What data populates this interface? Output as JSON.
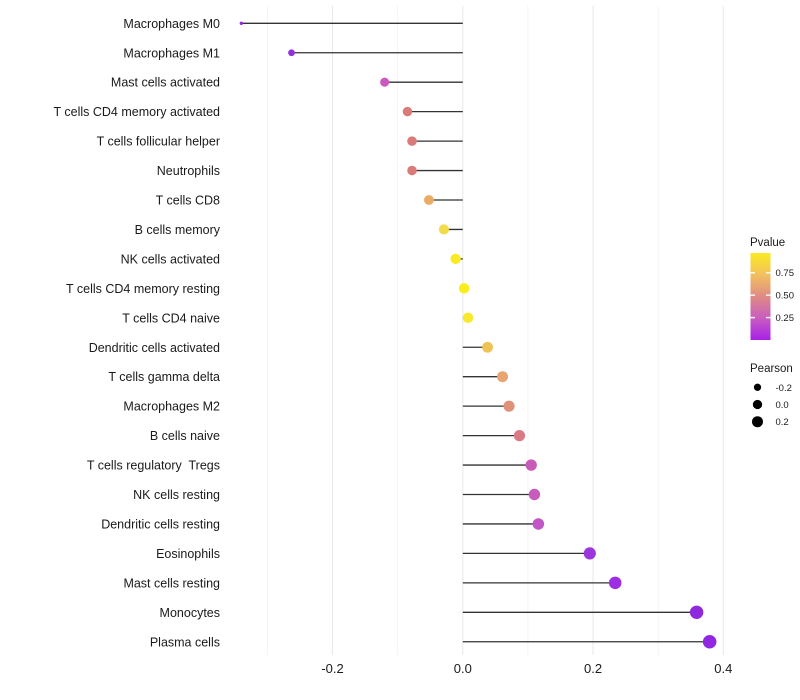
{
  "chart_data": {
    "type": "lollipop",
    "title": "",
    "xlabel": "",
    "ylabel": "",
    "orientation": "horizontal",
    "xlim": [
      -0.38,
      0.42
    ],
    "x_ticks": [
      -0.2,
      0.0,
      0.2,
      0.4
    ],
    "x_tick_labels": [
      "-0.2",
      "0.0",
      "0.2",
      "0.4"
    ],
    "minor_gridlines": [
      -0.3,
      -0.1,
      0.1,
      0.3
    ],
    "baseline_x": 0.0,
    "grid": "vertical-only",
    "points": [
      {
        "label": "Macrophages M0",
        "pearson": -0.34,
        "pvalue": 0.02,
        "color": "#8E2BD8"
      },
      {
        "label": "Macrophages M1",
        "pearson": -0.263,
        "pvalue": 0.05,
        "color": "#9330DD"
      },
      {
        "label": "Mast cells activated",
        "pearson": -0.12,
        "pvalue": 0.27,
        "color": "#C959BE"
      },
      {
        "label": "T cells CD4 memory activated",
        "pearson": -0.085,
        "pvalue": 0.47,
        "color": "#DB7B79"
      },
      {
        "label": "T cells follicular helper",
        "pearson": -0.078,
        "pvalue": 0.47,
        "color": "#DB7B79"
      },
      {
        "label": "Neutrophils",
        "pearson": -0.078,
        "pvalue": 0.47,
        "color": "#DB7B79"
      },
      {
        "label": "T cells CD8",
        "pearson": -0.052,
        "pvalue": 0.67,
        "color": "#EBAB63"
      },
      {
        "label": "B cells memory",
        "pearson": -0.029,
        "pvalue": 0.87,
        "color": "#F2DC48"
      },
      {
        "label": "NK cells activated",
        "pearson": -0.011,
        "pvalue": 0.95,
        "color": "#F9EB20"
      },
      {
        "label": "T cells CD4 memory resting",
        "pearson": 0.002,
        "pvalue": 0.96,
        "color": "#FAED1C"
      },
      {
        "label": "T cells CD4 naive",
        "pearson": 0.008,
        "pvalue": 0.93,
        "color": "#F7EA2E"
      },
      {
        "label": "Dendritic cells activated",
        "pearson": 0.038,
        "pvalue": 0.74,
        "color": "#EDC355"
      },
      {
        "label": "T cells gamma delta",
        "pearson": 0.061,
        "pvalue": 0.62,
        "color": "#E9A473"
      },
      {
        "label": "Macrophages M2",
        "pearson": 0.071,
        "pvalue": 0.53,
        "color": "#DE9279"
      },
      {
        "label": "B cells naive",
        "pearson": 0.087,
        "pvalue": 0.48,
        "color": "#DB7A85"
      },
      {
        "label": "T cells regulatory  Tregs",
        "pearson": 0.105,
        "pvalue": 0.28,
        "color": "#C85BB9"
      },
      {
        "label": "NK cells resting",
        "pearson": 0.11,
        "pvalue": 0.28,
        "color": "#C75BBE"
      },
      {
        "label": "Dendritic cells resting",
        "pearson": 0.116,
        "pvalue": 0.24,
        "color": "#C156C6"
      },
      {
        "label": "Eosinophils",
        "pearson": 0.195,
        "pvalue": 0.1,
        "color": "#9C35DC"
      },
      {
        "label": "Mast cells resting",
        "pearson": 0.234,
        "pvalue": 0.09,
        "color": "#9D2EE2"
      },
      {
        "label": "Monocytes",
        "pearson": 0.359,
        "pvalue": 0.05,
        "color": "#8F29DE"
      },
      {
        "label": "Plasma cells",
        "pearson": 0.379,
        "pvalue": 0.06,
        "color": "#9127E0"
      }
    ],
    "legend_pvalue": {
      "title": "Pvalue",
      "tick_labels": [
        "0.75",
        "0.50",
        "0.25"
      ],
      "tick_values": [
        0.75,
        0.5,
        0.25
      ],
      "domain": [
        0.0,
        0.97
      ],
      "gradient_top_to_bottom": [
        "#FBEA1F",
        "#F2C05F",
        "#DF8B84",
        "#C85CC0",
        "#A821E7"
      ]
    },
    "legend_pearson": {
      "title": "Pearson",
      "entries": [
        {
          "label": "-0.2",
          "value": -0.2,
          "diameter": 7.3
        },
        {
          "label": "0.0",
          "value": 0.0,
          "diameter": 9.3
        },
        {
          "label": "0.2",
          "value": 0.2,
          "diameter": 11.0
        }
      ],
      "dot_color": "#000000"
    },
    "style": {
      "stem_color": "#333333",
      "major_grid_color": "#e8e8e8",
      "minor_grid_color": "#f1f1f1",
      "axis_text_color": "#1a1a1a",
      "background": "#ffffff"
    }
  }
}
